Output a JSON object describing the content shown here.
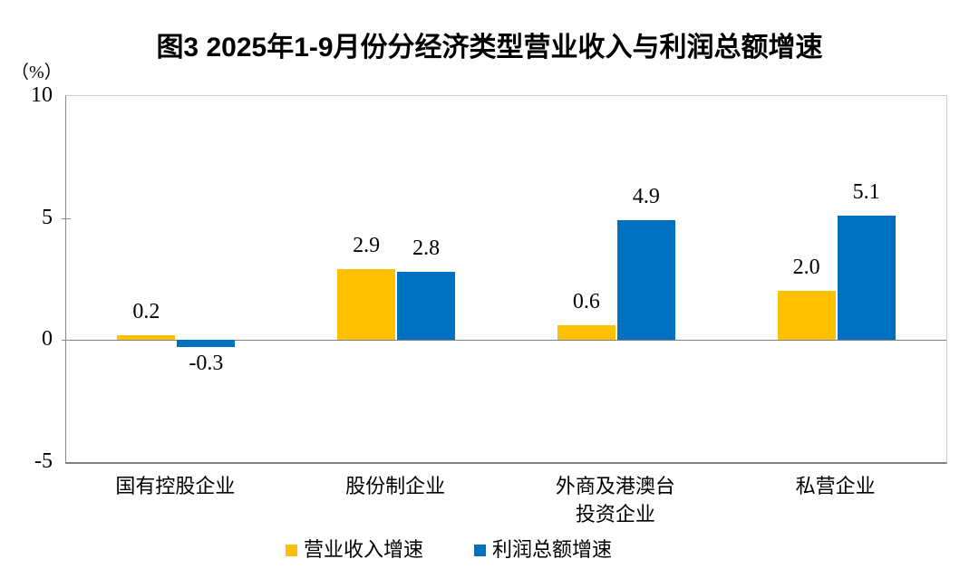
{
  "title": "图3 2025年1-9月份分经济类型营业收入与利润总额增速",
  "chart_data": {
    "type": "bar",
    "title": "图3 2025年1-9月份分经济类型营业收入与利润总额增速",
    "categories": [
      "国有控股企业",
      "股份制企业",
      "外商及港澳台\n投资企业",
      "私营企业"
    ],
    "series": [
      {
        "name": "营业收入增速",
        "color": "#FFC000",
        "values": [
          0.2,
          2.9,
          0.6,
          2.0
        ]
      },
      {
        "name": "利润总额增速",
        "color": "#0070C0",
        "values": [
          -0.3,
          2.8,
          4.9,
          5.1
        ]
      }
    ],
    "ylabel": "（%）",
    "ylim": [
      -5,
      10
    ],
    "yticks": [
      10,
      5,
      0,
      -5
    ],
    "grid": false,
    "legend_position": "bottom",
    "zero_baseline": true
  },
  "colors": {
    "revenue_bar": "#FFC000",
    "profit_bar": "#0070C0",
    "axis": "#808080",
    "plot_border": "#c9c9c9"
  }
}
